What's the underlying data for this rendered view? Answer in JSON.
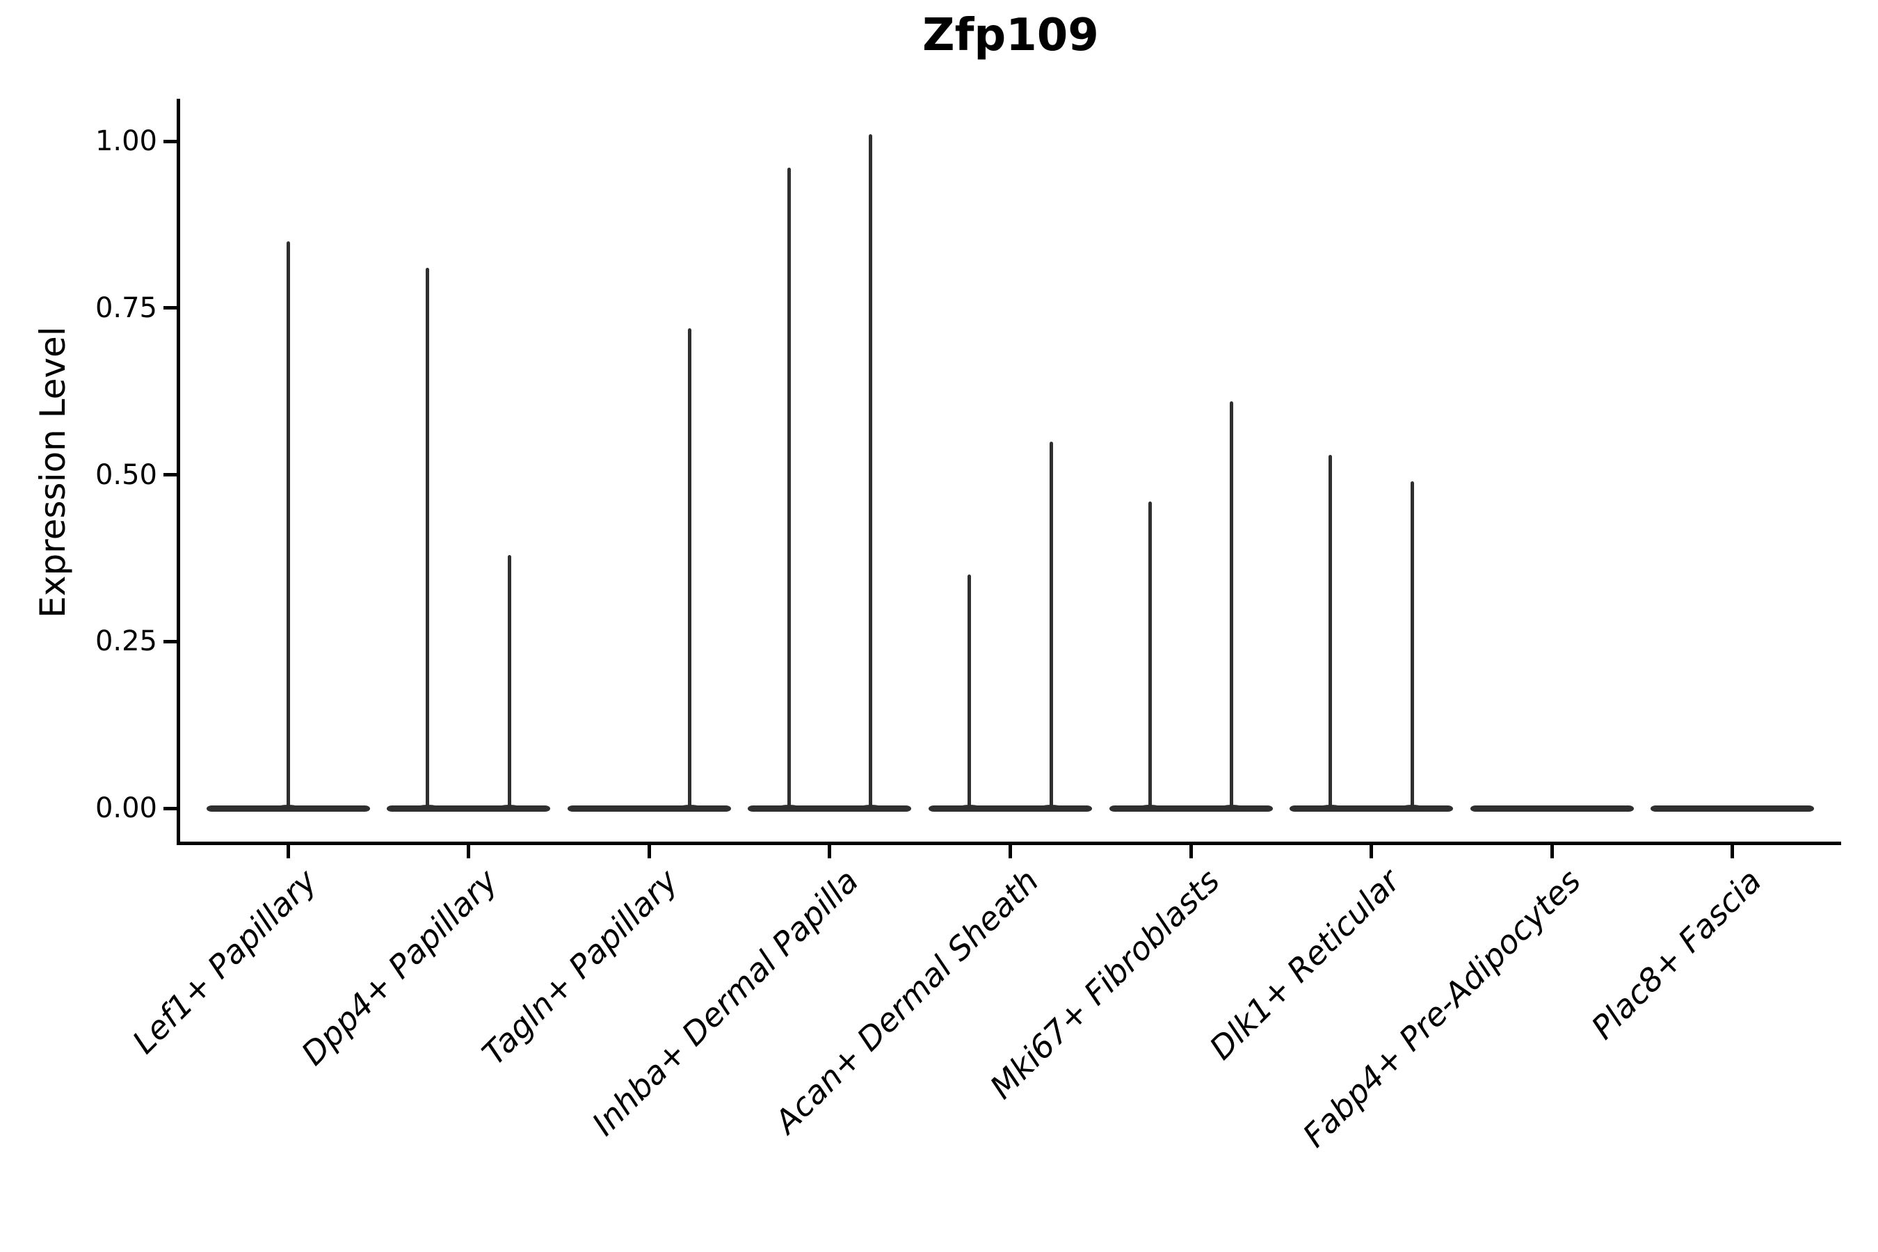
{
  "title": "Zfp109",
  "axes": {
    "ylabel": "Expression Level",
    "xlabel": "",
    "y_ticks": [
      {
        "label": "1.00",
        "value": 1.0
      },
      {
        "label": "0.75",
        "value": 0.75
      },
      {
        "label": "0.50",
        "value": 0.5
      },
      {
        "label": "0.25",
        "value": 0.25
      },
      {
        "label": "0.00",
        "value": 0.0
      }
    ]
  },
  "chart_data": {
    "type": "violin",
    "title": "Zfp109",
    "xlabel": "",
    "ylabel": "Expression Level",
    "ylim": [
      -0.05,
      1.06
    ],
    "grid": false,
    "legend": "none",
    "split_violins": true,
    "categories": [
      "Lef1+ Papillary",
      "Dpp4+ Papillary",
      "Tagln+ Papillary",
      "Inhba+ Dermal Papilla",
      "Acan+ Dermal Sheath",
      "Mki67+ Fibroblasts",
      "Dlk1+ Reticular",
      "Fabp4+ Pre-Adipocytes",
      "Plac8+ Fascia"
    ],
    "violins": [
      {
        "category": "Lef1+ Papillary",
        "body_at_zero": true,
        "spikes": [
          {
            "position": "center",
            "max": 0.85
          }
        ]
      },
      {
        "category": "Dpp4+ Papillary",
        "body_at_zero": true,
        "spikes": [
          {
            "position": "left",
            "max": 0.81
          },
          {
            "position": "right",
            "max": 0.38
          }
        ]
      },
      {
        "category": "Tagln+ Papillary",
        "body_at_zero": true,
        "spikes": [
          {
            "position": "right",
            "max": 0.72
          }
        ]
      },
      {
        "category": "Inhba+ Dermal Papilla",
        "body_at_zero": true,
        "spikes": [
          {
            "position": "left",
            "max": 0.96
          },
          {
            "position": "right",
            "max": 1.01
          }
        ]
      },
      {
        "category": "Acan+ Dermal Sheath",
        "body_at_zero": true,
        "spikes": [
          {
            "position": "left",
            "max": 0.35
          },
          {
            "position": "right",
            "max": 0.55
          }
        ]
      },
      {
        "category": "Mki67+ Fibroblasts",
        "body_at_zero": true,
        "spikes": [
          {
            "position": "left",
            "max": 0.46
          },
          {
            "position": "right",
            "max": 0.61
          }
        ]
      },
      {
        "category": "Dlk1+ Reticular",
        "body_at_zero": true,
        "spikes": [
          {
            "position": "left",
            "max": 0.53
          },
          {
            "position": "right",
            "max": 0.49
          }
        ]
      },
      {
        "category": "Fabp4+ Pre-Adipocytes",
        "body_at_zero": true,
        "spikes": []
      },
      {
        "category": "Plac8+ Fascia",
        "body_at_zero": true,
        "spikes": []
      }
    ],
    "colors": {
      "violin": "#2f2f2f",
      "axis": "#000000",
      "text": "#000000",
      "background": "#ffffff"
    }
  }
}
